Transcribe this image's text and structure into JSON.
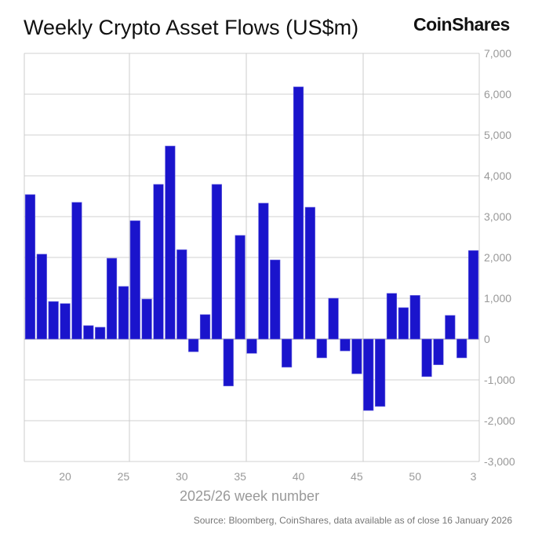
{
  "brand": "CoinShares",
  "source": "Source: Bloomberg, CoinShares, data available as of close 16 January 2026",
  "chart_data": {
    "type": "bar",
    "title": "Weekly Crypto Asset Flows (US$m)",
    "xlabel": "2025/26 week number",
    "ylabel": "",
    "ylim": [
      -3000,
      7000
    ],
    "yticks": [
      7000,
      6000,
      5000,
      4000,
      3000,
      2000,
      1000,
      0,
      -1000,
      -2000,
      -3000
    ],
    "ytick_labels": [
      "7,000",
      "6,000",
      "5,000",
      "4,000",
      "3,000",
      "2,000",
      "1,000",
      "0",
      "-1,000",
      "-2,000",
      "-3,000"
    ],
    "y_axis_side": "right",
    "xtick_labels": [
      "20",
      "25",
      "30",
      "35",
      "40",
      "45",
      "50",
      "3"
    ],
    "grid": true,
    "bar_color": "#1a14cc",
    "categories": [
      "17",
      "18",
      "19",
      "20",
      "21",
      "22",
      "23",
      "24",
      "25",
      "26",
      "27",
      "28",
      "29",
      "30",
      "31",
      "32",
      "33",
      "34",
      "35",
      "36",
      "37",
      "38",
      "39",
      "40",
      "41",
      "42",
      "43",
      "44",
      "45",
      "46",
      "47",
      "48",
      "49",
      "50",
      "51",
      "52",
      "1",
      "2",
      "3"
    ],
    "values": [
      3540,
      2080,
      920,
      870,
      3350,
      330,
      290,
      1980,
      1290,
      2900,
      980,
      3790,
      4730,
      2190,
      -310,
      600,
      3790,
      -1150,
      2540,
      -350,
      3330,
      1940,
      -690,
      6180,
      3230,
      -460,
      1000,
      -290,
      -850,
      -1750,
      -1650,
      1120,
      770,
      1070,
      -920,
      -630,
      580,
      -460,
      2170
    ]
  }
}
